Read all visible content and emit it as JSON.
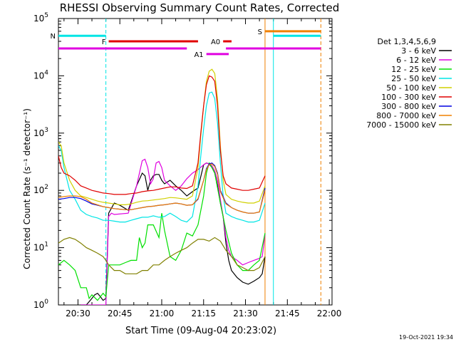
{
  "chart_data": {
    "type": "line",
    "title": "RHESSI Observing Summary Count Rates, Corrected",
    "ylabel": "Corrected Count Rate (s⁻¹ detector⁻¹)",
    "xlabel": "Start Time (09-Aug-04 20:23:02)",
    "ylim": [
      1,
      100000
    ],
    "yscale": "log",
    "xlim_minutes_after_2023": [
      0,
      98
    ],
    "x_tick_labels": [
      "20:30",
      "20:45",
      "21:00",
      "21:15",
      "21:30",
      "21:45",
      "22:00"
    ],
    "y_tick_labels": [
      {
        "base": "10",
        "exp": "0"
      },
      {
        "base": "10",
        "exp": "1"
      },
      {
        "base": "10",
        "exp": "2"
      },
      {
        "base": "10",
        "exp": "3"
      },
      {
        "base": "10",
        "exp": "4"
      },
      {
        "base": "10",
        "exp": "5"
      }
    ],
    "legend_title": "Det 1,3,4,5,6,9",
    "legend_position": "right",
    "footer_date": "19-Oct-2021 19:34",
    "flags": [
      {
        "label": "N",
        "color": "#00e5e5",
        "y": 50000,
        "segments": [
          [
            0,
            17
          ],
          [
            77,
            94
          ]
        ]
      },
      {
        "label": "F",
        "color": "#e00000",
        "y": 40000,
        "segments": [
          [
            18,
            50
          ]
        ]
      },
      {
        "label": "A0",
        "color": "#e00000",
        "y": 40000,
        "segments": [
          [
            59,
            62
          ]
        ]
      },
      {
        "label": "S",
        "color": "#f08000",
        "y": 60000,
        "segments": [
          [
            74,
            94
          ]
        ]
      },
      {
        "label": "",
        "color": "#e000e0",
        "y": 30000,
        "segments": [
          [
            0,
            46
          ],
          [
            60,
            94
          ]
        ]
      },
      {
        "label": "A1",
        "color": "#e000e0",
        "y": 24000,
        "segments": [
          [
            53,
            61
          ]
        ]
      }
    ],
    "vertical_markers": [
      {
        "x": 17,
        "color": "#00e5e5",
        "style": "dashed"
      },
      {
        "x": 74,
        "color": "#f08000",
        "style": "solid"
      },
      {
        "x": 77,
        "color": "#00e5e5",
        "style": "solid"
      },
      {
        "x": 94,
        "color": "#f08000",
        "style": "dashed"
      }
    ],
    "series": [
      {
        "name": "3 - 6 keV",
        "color": "#000000",
        "x": [
          8,
          10,
          12,
          13,
          14,
          15,
          16,
          17,
          18,
          20,
          22,
          25,
          28,
          30,
          31,
          32,
          33,
          34,
          35,
          36,
          37,
          38,
          40,
          42,
          44,
          46,
          48,
          50,
          52,
          53,
          54,
          55,
          56,
          57,
          58,
          59,
          60,
          61,
          62,
          64,
          66,
          68,
          70,
          72,
          73,
          74
        ],
        "y": [
          1,
          1,
          1.3,
          1.5,
          1.6,
          1.4,
          1.2,
          1.3,
          40,
          60,
          55,
          45,
          120,
          200,
          180,
          100,
          150,
          180,
          190,
          190,
          150,
          130,
          150,
          120,
          100,
          80,
          95,
          110,
          280,
          300,
          290,
          250,
          200,
          120,
          60,
          35,
          12,
          6,
          4,
          3,
          2.5,
          2.3,
          2.6,
          3,
          3.5,
          7
        ]
      },
      {
        "name": "6 - 12 keV",
        "color": "#e000e0",
        "x": [
          8,
          12,
          15,
          16,
          17,
          18,
          19,
          20,
          25,
          28,
          30,
          31,
          32,
          33,
          34,
          35,
          36,
          37,
          38,
          40,
          42,
          44,
          46,
          48,
          50,
          52,
          53,
          54,
          55,
          56,
          57,
          58,
          59,
          60,
          61,
          62,
          64,
          66,
          68,
          70,
          72,
          73,
          74
        ],
        "y": [
          1,
          1,
          1,
          1,
          1,
          35,
          40,
          38,
          40,
          120,
          330,
          350,
          250,
          130,
          160,
          300,
          320,
          250,
          150,
          120,
          100,
          120,
          160,
          200,
          230,
          280,
          300,
          290,
          270,
          220,
          150,
          70,
          35,
          15,
          9,
          7,
          6,
          5,
          5.5,
          6,
          6.5,
          7,
          17
        ]
      },
      {
        "name": "12 - 25 keV",
        "color": "#00e000",
        "x": [
          0,
          2,
          4,
          6,
          8,
          10,
          11,
          12,
          14,
          16,
          17,
          18,
          20,
          22,
          24,
          26,
          28,
          29,
          30,
          31,
          32,
          34,
          36,
          37,
          38,
          40,
          42,
          44,
          46,
          48,
          50,
          52,
          53,
          54,
          55,
          56,
          58,
          60,
          62,
          64,
          66,
          68,
          70,
          72,
          74
        ],
        "y": [
          5,
          6,
          5,
          4,
          2,
          2,
          1.3,
          1.5,
          1.2,
          1.6,
          1.4,
          5,
          5,
          5,
          5.5,
          6,
          6,
          15,
          10,
          12,
          25,
          25,
          15,
          40,
          20,
          7,
          6,
          9,
          18,
          16,
          25,
          80,
          200,
          300,
          250,
          200,
          60,
          20,
          8,
          5,
          4,
          4,
          5,
          6,
          18
        ]
      },
      {
        "name": "25 - 50 keV",
        "color": "#00e5e5",
        "x": [
          0,
          1,
          2,
          4,
          6,
          8,
          10,
          12,
          14,
          16,
          18,
          20,
          22,
          24,
          26,
          28,
          30,
          32,
          34,
          36,
          38,
          40,
          42,
          44,
          46,
          48,
          50,
          51,
          52,
          53,
          54,
          55,
          56,
          57,
          58,
          59,
          60,
          62,
          64,
          66,
          68,
          70,
          72,
          74
        ],
        "y": [
          600,
          500,
          250,
          100,
          70,
          45,
          38,
          35,
          33,
          30,
          30,
          29,
          28,
          28,
          30,
          32,
          34,
          34,
          36,
          34,
          35,
          40,
          35,
          30,
          28,
          35,
          120,
          400,
          1200,
          3000,
          5000,
          5200,
          4000,
          1500,
          300,
          80,
          40,
          35,
          32,
          30,
          28,
          28,
          30,
          60
        ]
      },
      {
        "name": "50 - 100 keV",
        "color": "#d0d000",
        "x": [
          0,
          1,
          2,
          4,
          6,
          8,
          10,
          12,
          14,
          16,
          18,
          20,
          22,
          24,
          26,
          28,
          30,
          32,
          34,
          36,
          38,
          40,
          42,
          44,
          46,
          48,
          50,
          51,
          52,
          53,
          54,
          55,
          56,
          57,
          58,
          59,
          60,
          62,
          64,
          66,
          68,
          70,
          72,
          74
        ],
        "y": [
          700,
          600,
          300,
          150,
          100,
          80,
          75,
          70,
          65,
          62,
          60,
          58,
          56,
          56,
          58,
          62,
          65,
          66,
          68,
          70,
          72,
          75,
          74,
          72,
          70,
          80,
          250,
          900,
          3000,
          8000,
          12000,
          13000,
          11000,
          4000,
          600,
          150,
          85,
          70,
          65,
          62,
          60,
          60,
          65,
          120
        ]
      },
      {
        "name": "100 - 300 keV",
        "color": "#e00000",
        "x": [
          0,
          1,
          2,
          4,
          6,
          8,
          10,
          12,
          14,
          16,
          18,
          20,
          22,
          24,
          26,
          28,
          30,
          32,
          34,
          36,
          38,
          40,
          42,
          44,
          46,
          48,
          50,
          51,
          52,
          53,
          54,
          55,
          56,
          57,
          58,
          59,
          60,
          62,
          64,
          66,
          68,
          70,
          72,
          74
        ],
        "y": [
          400,
          250,
          200,
          180,
          150,
          120,
          110,
          100,
          95,
          90,
          88,
          85,
          85,
          85,
          88,
          90,
          95,
          98,
          100,
          105,
          110,
          115,
          115,
          110,
          108,
          120,
          300,
          1000,
          3000,
          7000,
          10000,
          9500,
          8000,
          3000,
          500,
          180,
          130,
          110,
          105,
          100,
          100,
          105,
          110,
          180
        ]
      },
      {
        "name": "300 - 800 keV",
        "color": "#0000e0",
        "x": [
          0,
          2,
          4,
          6,
          8,
          10,
          12,
          14,
          16,
          18,
          20,
          22,
          24,
          26,
          28,
          30,
          32,
          34,
          36,
          38,
          40,
          42,
          44,
          46,
          48,
          50,
          52,
          53,
          54,
          55,
          56,
          57,
          58,
          60,
          62,
          64,
          66,
          68,
          70,
          72,
          74
        ],
        "y": [
          70,
          72,
          75,
          75,
          72,
          65,
          58,
          55,
          52,
          50,
          48,
          47,
          46,
          46,
          48,
          50,
          52,
          53,
          55,
          56,
          58,
          60,
          58,
          55,
          56,
          70,
          150,
          240,
          290,
          300,
          270,
          200,
          100,
          60,
          50,
          45,
          42,
          40,
          40,
          42,
          110
        ]
      },
      {
        "name": "800 - 7000 keV",
        "color": "#f08000",
        "x": [
          0,
          2,
          4,
          6,
          8,
          10,
          12,
          14,
          16,
          18,
          20,
          22,
          24,
          26,
          28,
          30,
          32,
          34,
          36,
          38,
          40,
          42,
          44,
          46,
          48,
          50,
          52,
          53,
          54,
          55,
          56,
          57,
          58,
          60,
          62,
          64,
          66,
          68,
          70,
          72,
          74
        ],
        "y": [
          75,
          78,
          80,
          80,
          78,
          70,
          60,
          56,
          52,
          50,
          48,
          47,
          46,
          46,
          48,
          50,
          52,
          53,
          55,
          56,
          58,
          60,
          58,
          55,
          56,
          72,
          150,
          230,
          280,
          290,
          260,
          190,
          95,
          58,
          50,
          45,
          42,
          40,
          40,
          42,
          100
        ]
      },
      {
        "name": "7000 - 15000 keV",
        "color": "#808000",
        "x": [
          0,
          2,
          4,
          6,
          8,
          10,
          12,
          14,
          16,
          17,
          18,
          20,
          22,
          24,
          26,
          28,
          30,
          32,
          34,
          36,
          38,
          40,
          42,
          44,
          46,
          48,
          50,
          52,
          54,
          56,
          58,
          60,
          62,
          64,
          66,
          68,
          70,
          72,
          74
        ],
        "y": [
          12,
          14,
          15,
          14,
          12,
          10,
          9,
          8,
          7,
          6,
          5,
          4,
          4,
          3.5,
          3.5,
          3.5,
          4,
          4,
          5,
          5,
          6,
          7,
          8,
          9,
          10,
          12,
          14,
          14,
          13,
          15,
          13,
          9,
          7,
          5,
          4.5,
          4,
          4,
          4.5,
          7
        ]
      }
    ]
  }
}
